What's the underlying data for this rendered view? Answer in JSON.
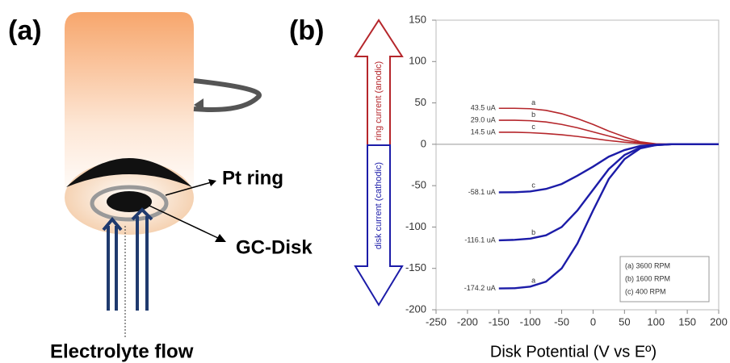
{
  "panel_a": {
    "label": "(a)",
    "ring_label": "Pt ring",
    "disk_label": "GC-Disk",
    "flow_label": "Electrolyte flow"
  },
  "chart_data": {
    "type": "line",
    "panel_label": "(b)",
    "x_label": "Disk Potential (V vs Eº)",
    "ring_arrow_label": "ring current (anodic)",
    "disk_arrow_label": "disk current (cathodic)",
    "legend_notes": [
      "(a) 3600 RPM",
      "(b) 1600 RPM",
      "(c) 400 RPM"
    ],
    "xlim": [
      -250,
      200
    ],
    "xticks": [
      -250,
      -200,
      -150,
      -100,
      -50,
      0,
      50,
      100,
      150,
      200
    ],
    "ylim": [
      -200,
      150
    ],
    "yticks": [
      150,
      100,
      50,
      0,
      -50,
      -100,
      -150,
      -200
    ],
    "grid": false,
    "x": [
      -150,
      -125,
      -100,
      -75,
      -50,
      -25,
      0,
      25,
      50,
      75,
      100,
      125,
      150,
      175,
      200
    ],
    "series": [
      {
        "name": "a",
        "color": "#b5262b",
        "start_label": "43.5 uA",
        "values": [
          43.5,
          43.5,
          43,
          41,
          37,
          31,
          24,
          16,
          9,
          3,
          0.5,
          0,
          0,
          0,
          0
        ]
      },
      {
        "name": "b",
        "color": "#b5262b",
        "start_label": "29.0 uA",
        "values": [
          29.0,
          29,
          28.5,
          27,
          24,
          20,
          15,
          10,
          5,
          2,
          0.3,
          0,
          0,
          0,
          0
        ]
      },
      {
        "name": "c",
        "color": "#b5262b",
        "start_label": "14.5 uA",
        "values": [
          14.5,
          14.5,
          14,
          13,
          11.5,
          9.5,
          7,
          4.5,
          2.5,
          1,
          0.2,
          0,
          0,
          0,
          0
        ]
      },
      {
        "name": "c",
        "color": "#1c1ca8",
        "start_label": "-58.1 uA",
        "values": [
          -58.1,
          -58,
          -57,
          -54,
          -48,
          -38,
          -27,
          -15,
          -7,
          -2,
          -0.5,
          0,
          0,
          0,
          0
        ]
      },
      {
        "name": "b",
        "color": "#1c1ca8",
        "start_label": "-116.1 uA",
        "values": [
          -116.1,
          -115.5,
          -114,
          -110,
          -100,
          -80,
          -55,
          -30,
          -13,
          -4,
          -1,
          0,
          0,
          0,
          0
        ]
      },
      {
        "name": "a",
        "color": "#1c1ca8",
        "start_label": "-174.2 uA",
        "values": [
          -174.2,
          -174,
          -172,
          -166,
          -150,
          -120,
          -80,
          -42,
          -18,
          -5,
          -1,
          0,
          0,
          0,
          0
        ]
      }
    ]
  }
}
